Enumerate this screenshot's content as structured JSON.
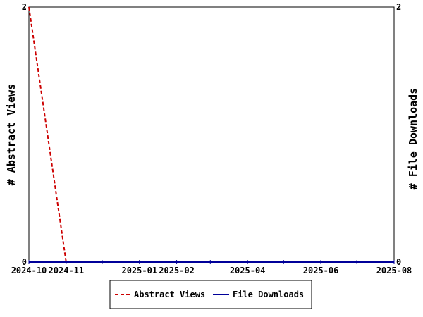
{
  "chart_data": {
    "type": "line",
    "x_axis": {
      "tick_labels": [
        "2024-10",
        "2024-11",
        "2025-01",
        "2025-02",
        "2025-04",
        "2025-06",
        "2025-08"
      ],
      "range": [
        "2024-10-01",
        "2025-08-01"
      ]
    },
    "y_left": {
      "label": "# Abstract Views",
      "range": [
        0,
        2
      ],
      "tick_labels": [
        "0",
        "2"
      ]
    },
    "y_right": {
      "label": "# File Downloads",
      "range": [
        0,
        2
      ],
      "tick_labels": [
        "0",
        "2"
      ]
    },
    "grid": false,
    "legend_position": "bottom",
    "series": [
      {
        "name": "Abstract Views",
        "axis": "left",
        "style": "dashed",
        "color": "#cc0000",
        "points": [
          {
            "x": "2024-10-01",
            "y": 2
          },
          {
            "x": "2024-11-01",
            "y": 0
          }
        ]
      },
      {
        "name": "File Downloads",
        "axis": "right",
        "style": "solid",
        "color": "#000099",
        "points": [
          {
            "x": "2024-10-01",
            "y": 0
          },
          {
            "x": "2025-08-01",
            "y": 0
          }
        ]
      }
    ]
  }
}
